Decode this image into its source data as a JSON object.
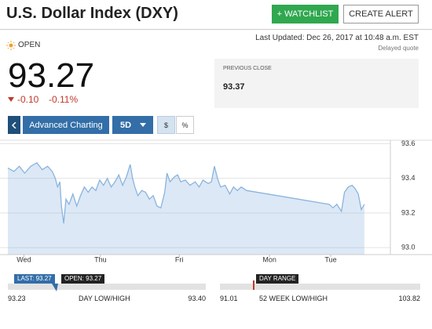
{
  "header": {
    "title": "U.S. Dollar Index (DXY)",
    "watchlist_button": "+ WATCHLIST",
    "alert_button": "CREATE ALERT"
  },
  "quote": {
    "status": "OPEN",
    "last_updated": "Last Updated: Dec 26, 2017 at 10:48 a.m. EST",
    "delayed": "Delayed quote",
    "price": "93.27",
    "change": "-0.10",
    "change_percent": "-0.11%"
  },
  "previous_close": {
    "label": "PREVIOUS CLOSE",
    "value": "93.37"
  },
  "controls": {
    "advanced": "Advanced Charting",
    "period": "5D",
    "dollar": "$",
    "percent": "%"
  },
  "chart_data": {
    "type": "area",
    "color": "#8ab4de",
    "grid": true,
    "x": [
      0,
      8,
      15,
      22,
      30,
      38,
      45,
      52,
      58,
      62,
      65,
      68,
      70,
      73,
      76,
      80,
      85,
      90,
      95,
      100,
      105,
      110,
      115,
      120,
      125,
      130,
      135,
      140,
      145,
      150,
      155,
      160,
      163,
      166,
      170,
      175,
      180,
      185,
      190,
      195,
      200,
      205,
      208,
      212,
      218,
      222,
      226,
      232,
      238,
      245,
      250,
      255,
      262,
      266,
      270,
      274,
      278,
      284,
      290,
      295,
      300,
      305,
      312,
      420,
      425,
      430,
      436,
      440,
      445,
      450,
      454,
      458,
      462,
      466
    ],
    "values": [
      93.46,
      93.44,
      93.47,
      93.43,
      93.47,
      93.49,
      93.45,
      93.47,
      93.44,
      93.4,
      93.35,
      93.38,
      93.24,
      93.14,
      93.28,
      93.25,
      93.31,
      93.24,
      93.3,
      93.35,
      93.32,
      93.35,
      93.33,
      93.39,
      93.36,
      93.4,
      93.35,
      93.38,
      93.42,
      93.36,
      93.41,
      93.48,
      93.4,
      93.35,
      93.3,
      93.33,
      93.32,
      93.28,
      93.3,
      93.24,
      93.23,
      93.32,
      93.43,
      93.38,
      93.41,
      93.42,
      93.38,
      93.39,
      93.36,
      93.38,
      93.35,
      93.39,
      93.37,
      93.38,
      93.47,
      93.4,
      93.35,
      93.36,
      93.31,
      93.35,
      93.33,
      93.35,
      93.33,
      93.25,
      93.23,
      93.25,
      93.21,
      93.32,
      93.35,
      93.36,
      93.34,
      93.31,
      93.22,
      93.25
    ],
    "xlim": [
      0,
      500
    ],
    "xticks": [
      {
        "value": 21,
        "label": "Wed"
      },
      {
        "value": 121,
        "label": "Thu"
      },
      {
        "value": 224,
        "label": "Fri"
      },
      {
        "value": 342,
        "label": "Mon"
      },
      {
        "value": 422,
        "label": "Tue"
      }
    ],
    "ylim": [
      92.96,
      93.62
    ],
    "yticks": [
      93.6,
      93.4,
      93.2,
      {
        "value": 93,
        "label": "93.0"
      }
    ]
  },
  "ranges": {
    "last_badge": "LAST: 93.27",
    "open_badge": "OPEN: 93.27",
    "range_badge": "DAY RANGE",
    "day_low": "93.23",
    "day_label": "DAY LOW/HIGH",
    "day_high": "93.40",
    "week_low": "91.01",
    "week_label": "52 WEEK LOW/HIGH",
    "week_high": "103.82"
  }
}
